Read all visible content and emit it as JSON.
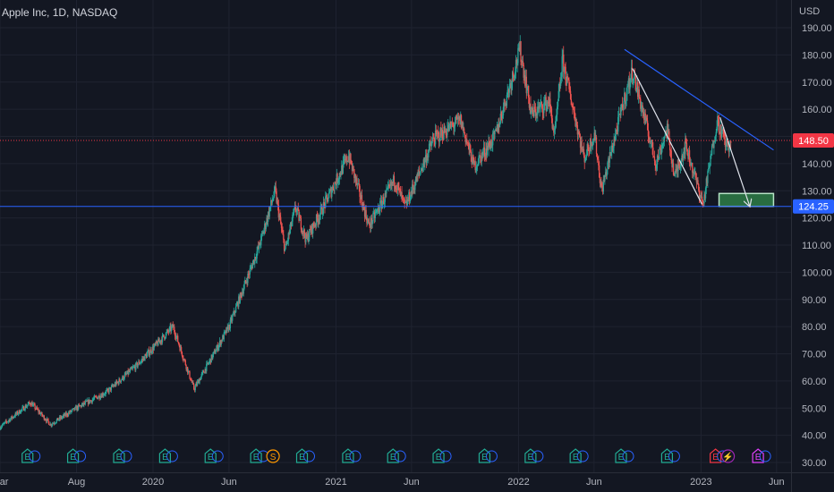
{
  "header": {
    "title": "Apple Inc, 1D, NASDAQ"
  },
  "colors": {
    "background": "#131722",
    "grid": "#1f2330",
    "up": "#26a69a",
    "down": "#ef5350",
    "blue_line": "#2962ff",
    "white_line": "#e0e3eb",
    "target_box": "#2e7d46",
    "current_price_badge": "#f23645",
    "level_badge": "#2962ff"
  },
  "chart_data": {
    "type": "candlestick",
    "title": "Apple Inc, 1D, NASDAQ",
    "currency_label": "USD",
    "y_ticks": [
      "190.00",
      "180.00",
      "170.00",
      "160.00",
      "150.00",
      "140.00",
      "130.00",
      "120.00",
      "110.00",
      "100.00",
      "90.00",
      "80.00",
      "70.00",
      "60.00",
      "50.00",
      "40.00",
      "30.00"
    ],
    "ylim": [
      30,
      190
    ],
    "xlim": [
      "2019-03-01",
      "2023-06-30"
    ],
    "x_ticks": [
      {
        "label": "Mar",
        "date": "2019-03-01"
      },
      {
        "label": "Aug",
        "date": "2019-08-01"
      },
      {
        "label": "2020",
        "date": "2020-01-01"
      },
      {
        "label": "Jun",
        "date": "2020-06-01"
      },
      {
        "label": "2021",
        "date": "2021-01-01"
      },
      {
        "label": "Jun",
        "date": "2021-06-01"
      },
      {
        "label": "2022",
        "date": "2022-01-01"
      },
      {
        "label": "Jun",
        "date": "2022-06-01"
      },
      {
        "label": "2023",
        "date": "2023-01-01"
      },
      {
        "label": "Jun",
        "date": "2023-06-01"
      }
    ],
    "price_path": [
      [
        "2019-03-01",
        43
      ],
      [
        "2019-05-01",
        52
      ],
      [
        "2019-06-10",
        44
      ],
      [
        "2019-08-01",
        50
      ],
      [
        "2019-10-01",
        56
      ],
      [
        "2019-12-01",
        66
      ],
      [
        "2020-02-10",
        80
      ],
      [
        "2020-03-23",
        57
      ],
      [
        "2020-06-01",
        80
      ],
      [
        "2020-08-01",
        110
      ],
      [
        "2020-09-01",
        130
      ],
      [
        "2020-09-21",
        108
      ],
      [
        "2020-10-12",
        124
      ],
      [
        "2020-11-02",
        112
      ],
      [
        "2020-12-01",
        122
      ],
      [
        "2021-01-26",
        143
      ],
      [
        "2021-03-08",
        117
      ],
      [
        "2021-04-28",
        134
      ],
      [
        "2021-05-19",
        124
      ],
      [
        "2021-07-15",
        149
      ],
      [
        "2021-09-07",
        156
      ],
      [
        "2021-10-04",
        139
      ],
      [
        "2021-11-15",
        150
      ],
      [
        "2022-01-04",
        182
      ],
      [
        "2022-01-27",
        158
      ],
      [
        "2022-03-03",
        163
      ],
      [
        "2022-03-14",
        150
      ],
      [
        "2022-03-30",
        178
      ],
      [
        "2022-05-12",
        142
      ],
      [
        "2022-06-02",
        151
      ],
      [
        "2022-06-16",
        130
      ],
      [
        "2022-07-29",
        162
      ],
      [
        "2022-08-17",
        174
      ],
      [
        "2022-10-03",
        140
      ],
      [
        "2022-10-25",
        153
      ],
      [
        "2022-11-09",
        135
      ],
      [
        "2022-12-01",
        147
      ],
      [
        "2023-01-05",
        125
      ],
      [
        "2023-02-02",
        156
      ],
      [
        "2023-02-20",
        147
      ],
      [
        "2023-03-02",
        146
      ]
    ],
    "lines": [
      {
        "name": "descending-trendline",
        "color": "blue",
        "from": [
          "2022-08-01",
          182
        ],
        "to": [
          "2023-05-26",
          145
        ]
      },
      {
        "name": "support-line",
        "color": "blue",
        "price": 124.25
      },
      {
        "name": "swing-line-1",
        "color": "white",
        "from": [
          "2022-08-17",
          175
        ],
        "to": [
          "2023-01-03",
          125
        ]
      },
      {
        "name": "swing-line-2",
        "color": "white",
        "from": [
          "2023-02-08",
          157
        ],
        "to": [
          "2023-04-08",
          124.5
        ]
      }
    ],
    "target_zone": {
      "from_date": "2023-02-06",
      "to_date": "2023-05-26",
      "low": 124.25,
      "high": 129
    }
  },
  "price_labels": {
    "current": "148.50",
    "current_value": 148.5,
    "level": "124.25",
    "level_value": 124.25
  },
  "events": [
    {
      "letter": "E",
      "date": "2019-04-25",
      "color": "#22ab94"
    },
    {
      "letter": "E",
      "date": "2019-07-25",
      "color": "#22ab94"
    },
    {
      "letter": "E",
      "date": "2019-10-25",
      "color": "#22ab94"
    },
    {
      "letter": "E",
      "date": "2020-01-25",
      "color": "#22ab94"
    },
    {
      "letter": "E",
      "date": "2020-04-25",
      "color": "#22ab94"
    },
    {
      "letter": "E",
      "date": "2020-07-25",
      "color": "#22ab94"
    },
    {
      "letter": "S",
      "date": "2020-08-28",
      "color": "#ff9800"
    },
    {
      "letter": "E",
      "date": "2020-10-25",
      "color": "#22ab94"
    },
    {
      "letter": "E",
      "date": "2021-01-25",
      "color": "#22ab94"
    },
    {
      "letter": "E",
      "date": "2021-04-25",
      "color": "#22ab94"
    },
    {
      "letter": "E",
      "date": "2021-07-25",
      "color": "#22ab94"
    },
    {
      "letter": "E",
      "date": "2021-10-25",
      "color": "#22ab94"
    },
    {
      "letter": "E",
      "date": "2022-01-25",
      "color": "#22ab94"
    },
    {
      "letter": "E",
      "date": "2022-04-25",
      "color": "#22ab94"
    },
    {
      "letter": "E",
      "date": "2022-07-25",
      "color": "#22ab94"
    },
    {
      "letter": "E",
      "date": "2022-10-25",
      "color": "#22ab94"
    },
    {
      "letter": "E",
      "date": "2023-01-30",
      "color": "#f23645"
    },
    {
      "letter": "⚡",
      "date": "2023-02-24",
      "color": "#9c27b0"
    },
    {
      "letter": "E",
      "date": "2023-04-25",
      "color": "#e040fb"
    }
  ]
}
